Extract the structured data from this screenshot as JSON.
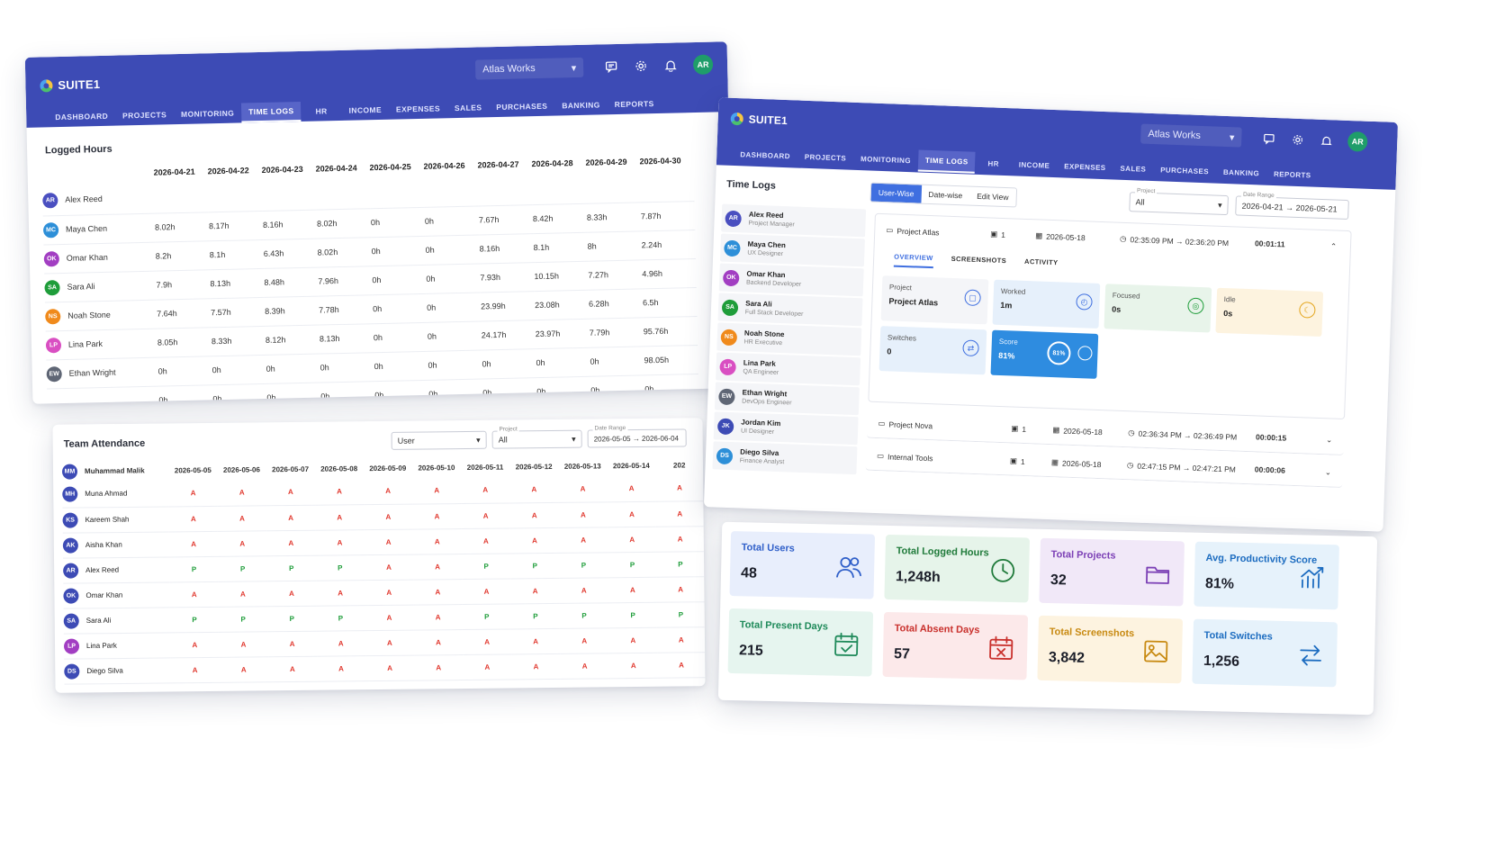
{
  "app": {
    "brand": "SUITE1",
    "company": "Atlas Works",
    "user_initials": "AR",
    "nav": [
      "DASHBOARD",
      "PROJECTS",
      "MONITORING",
      "TIME LOGS",
      "HR",
      "INCOME",
      "EXPENSES",
      "SALES",
      "PURCHASES",
      "BANKING",
      "REPORTS"
    ],
    "active_nav": "TIME LOGS"
  },
  "logged_hours": {
    "title": "Logged Hours",
    "dates": [
      "2026-04-21",
      "2026-04-22",
      "2026-04-23",
      "2026-04-24",
      "2026-04-25",
      "2026-04-26",
      "2026-04-27",
      "2026-04-28",
      "2026-04-29",
      "2026-04-30"
    ],
    "rows": [
      {
        "initials": "AR",
        "name": "Alex Reed",
        "color": "#4a4fc0",
        "values": [
          "",
          "",
          "",
          "",
          "",
          "",
          "",
          "",
          "",
          ""
        ]
      },
      {
        "initials": "MC",
        "name": "Maya Chen",
        "color": "#2d8fd8",
        "values": [
          "8.02h",
          "8.17h",
          "8.16h",
          "8.02h",
          "0h",
          "0h",
          "7.67h",
          "8.42h",
          "8.33h",
          "7.87h"
        ]
      },
      {
        "initials": "OK",
        "name": "Omar Khan",
        "color": "#a23ec2",
        "values": [
          "8.2h",
          "8.1h",
          "6.43h",
          "8.02h",
          "0h",
          "0h",
          "8.16h",
          "8.1h",
          "8h",
          "2.24h"
        ]
      },
      {
        "initials": "SA",
        "name": "Sara Ali",
        "color": "#1f9d3a",
        "values": [
          "7.9h",
          "8.13h",
          "8.48h",
          "7.96h",
          "0h",
          "0h",
          "7.93h",
          "10.15h",
          "7.27h",
          "4.96h"
        ]
      },
      {
        "initials": "NS",
        "name": "Noah Stone",
        "color": "#f08a1c",
        "values": [
          "7.64h",
          "7.57h",
          "8.39h",
          "7.78h",
          "0h",
          "0h",
          "23.99h",
          "23.08h",
          "6.28h",
          "6.5h"
        ]
      },
      {
        "initials": "LP",
        "name": "Lina Park",
        "color": "#d94fc2",
        "values": [
          "8.05h",
          "8.33h",
          "8.12h",
          "8.13h",
          "0h",
          "0h",
          "24.17h",
          "23.97h",
          "7.79h",
          "95.76h"
        ]
      },
      {
        "initials": "EW",
        "name": "Ethan Wright",
        "color": "#5f6675",
        "values": [
          "0h",
          "0h",
          "0h",
          "0h",
          "0h",
          "0h",
          "0h",
          "0h",
          "0h",
          "98.05h"
        ]
      },
      {
        "initials": "",
        "name": "",
        "color": "",
        "values": [
          "0h",
          "0h",
          "0h",
          "0h",
          "0h",
          "0h",
          "0h",
          "0h",
          "0h",
          "0h"
        ]
      }
    ]
  },
  "time_logs": {
    "title": "Time Logs",
    "view_tabs": [
      "User-Wise",
      "Date-wise",
      "Edit View"
    ],
    "project_label": "Project",
    "project_value": "All",
    "date_range_label": "Date Range",
    "date_range_value": "2026-04-21 → 2026-05-21",
    "users": [
      {
        "initials": "AR",
        "name": "Alex Reed",
        "role": "Project Manager",
        "color": "#4a4fc0"
      },
      {
        "initials": "MC",
        "name": "Maya Chen",
        "role": "UX Designer",
        "color": "#2d8fd8"
      },
      {
        "initials": "OK",
        "name": "Omar Khan",
        "role": "Backend Developer",
        "color": "#a23ec2"
      },
      {
        "initials": "SA",
        "name": "Sara Ali",
        "role": "Full Stack Developer",
        "color": "#1f9d3a"
      },
      {
        "initials": "NS",
        "name": "Noah Stone",
        "role": "HR Executive",
        "color": "#f08a1c"
      },
      {
        "initials": "LP",
        "name": "Lina Park",
        "role": "QA Engineer",
        "color": "#d94fc2"
      },
      {
        "initials": "EW",
        "name": "Ethan Wright",
        "role": "DevOps Engineer",
        "color": "#5f6675"
      },
      {
        "initials": "JK",
        "name": "Jordan Kim",
        "role": "UI Designer",
        "color": "#3d4bb5"
      },
      {
        "initials": "DS",
        "name": "Diego Silva",
        "role": "Finance Analyst",
        "color": "#2d8fd8"
      }
    ],
    "entries": [
      {
        "project": "Project Atlas",
        "count": "1",
        "date": "2026-05-18",
        "time_range": "02:35:09 PM → 02:36:20 PM",
        "duration": "00:01:11"
      },
      {
        "project": "Project Nova",
        "count": "1",
        "date": "2026-05-18",
        "time_range": "02:36:34 PM → 02:36:49 PM",
        "duration": "00:00:15"
      },
      {
        "project": "Internal Tools",
        "count": "1",
        "date": "2026-05-18",
        "time_range": "02:47:15 PM → 02:47:21 PM",
        "duration": "00:00:06"
      }
    ],
    "detail_tabs": [
      "OVERVIEW",
      "SCREENSHOTS",
      "ACTIVITY"
    ],
    "metrics": {
      "project_label": "Project",
      "project_value": "Project Atlas",
      "worked_label": "Worked",
      "worked_value": "1m",
      "focused_label": "Focused",
      "focused_value": "0s",
      "idle_label": "Idle",
      "idle_value": "0s",
      "switches_label": "Switches",
      "switches_value": "0",
      "score_label": "Score",
      "score_value": "81%",
      "score_ring": "81%"
    }
  },
  "attendance": {
    "title": "Team Attendance",
    "user_filter": "User",
    "project_label": "Project",
    "project_value": "All",
    "date_range_label": "Date Range",
    "date_range_value": "2026-05-05 → 2026-06-04",
    "dates": [
      "2026-05-05",
      "2026-05-06",
      "2026-05-07",
      "2026-05-08",
      "2026-05-09",
      "2026-05-10",
      "2026-05-11",
      "2026-05-12",
      "2026-05-13",
      "2026-05-14",
      "202"
    ],
    "rows": [
      {
        "initials": "MM",
        "name": "Muhammad Malik",
        "color": "#3d4bb5",
        "marks": [
          "",
          "",
          "",
          "",
          "",
          "",
          "",
          "",
          "",
          "",
          ""
        ]
      },
      {
        "initials": "MH",
        "name": "Muna Ahmad",
        "color": "#3d4bb5",
        "marks": [
          "A",
          "A",
          "A",
          "A",
          "A",
          "A",
          "A",
          "A",
          "A",
          "A",
          "A"
        ]
      },
      {
        "initials": "KS",
        "name": "Kareem Shah",
        "color": "#3d4bb5",
        "marks": [
          "A",
          "A",
          "A",
          "A",
          "A",
          "A",
          "A",
          "A",
          "A",
          "A",
          "A"
        ]
      },
      {
        "initials": "AK",
        "name": "Aisha Khan",
        "color": "#3d4bb5",
        "marks": [
          "A",
          "A",
          "A",
          "A",
          "A",
          "A",
          "A",
          "A",
          "A",
          "A",
          "A"
        ]
      },
      {
        "initials": "AR",
        "name": "Alex Reed",
        "color": "#3d4bb5",
        "marks": [
          "P",
          "P",
          "P",
          "P",
          "A",
          "A",
          "P",
          "P",
          "P",
          "P",
          "P"
        ]
      },
      {
        "initials": "OK",
        "name": "Omar Khan",
        "color": "#3d4bb5",
        "marks": [
          "A",
          "A",
          "A",
          "A",
          "A",
          "A",
          "A",
          "A",
          "A",
          "A",
          "A"
        ]
      },
      {
        "initials": "SA",
        "name": "Sara Ali",
        "color": "#3d4bb5",
        "marks": [
          "P",
          "P",
          "P",
          "P",
          "A",
          "A",
          "P",
          "P",
          "P",
          "P",
          "P"
        ]
      },
      {
        "initials": "LP",
        "name": "Lina Park",
        "color": "#a23ec2",
        "marks": [
          "A",
          "A",
          "A",
          "A",
          "A",
          "A",
          "A",
          "A",
          "A",
          "A",
          "A"
        ]
      },
      {
        "initials": "DS",
        "name": "Diego Silva",
        "color": "#3d4bb5",
        "marks": [
          "A",
          "A",
          "A",
          "A",
          "A",
          "A",
          "A",
          "A",
          "A",
          "A",
          "A"
        ]
      }
    ]
  },
  "stats": [
    {
      "label": "Total Users",
      "value": "48",
      "icon": "users-icon",
      "bg": "#e8eefc",
      "fg": "#2f5fc9"
    },
    {
      "label": "Total Logged Hours",
      "value": "1,248h",
      "icon": "clock-icon",
      "bg": "#e6f4ea",
      "fg": "#1f7a3a"
    },
    {
      "label": "Total Projects",
      "value": "32",
      "icon": "folder-icon",
      "bg": "#f1e8f8",
      "fg": "#7b3fb5"
    },
    {
      "label": "Avg. Productivity Score",
      "value": "81%",
      "icon": "chart-up-icon",
      "bg": "#e6f2fb",
      "fg": "#1c6cc0"
    },
    {
      "label": "Total Present Days",
      "value": "215",
      "icon": "calendar-check-icon",
      "bg": "#e6f5ef",
      "fg": "#1f8a5a"
    },
    {
      "label": "Total Absent Days",
      "value": "57",
      "icon": "calendar-x-icon",
      "bg": "#fce9ea",
      "fg": "#c9302c"
    },
    {
      "label": "Total Screenshots",
      "value": "3,842",
      "icon": "image-icon",
      "bg": "#fdf3e0",
      "fg": "#c88a12"
    },
    {
      "label": "Total Switches",
      "value": "1,256",
      "icon": "switch-arrows-icon",
      "bg": "#e6f2fb",
      "fg": "#1c6cc0"
    }
  ]
}
